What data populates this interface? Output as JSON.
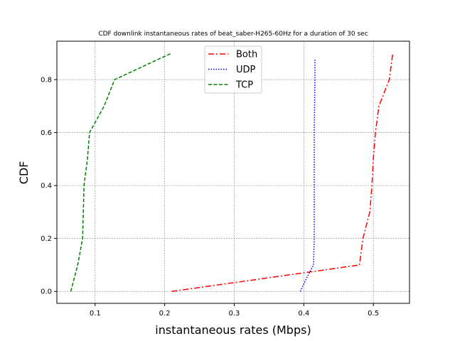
{
  "chart_data": {
    "type": "line",
    "title": "CDF downlink instantaneous rates of beat_saber-H265-60Hz for a duration of 30 sec",
    "xlabel": "instantaneous rates (Mbps)",
    "ylabel": "CDF",
    "xlim": [
      0.045,
      0.552
    ],
    "ylim": [
      -0.045,
      0.945
    ],
    "xticks": [
      0.1,
      0.2,
      0.3,
      0.4,
      0.5
    ],
    "xtick_labels": [
      "0.1",
      "0.2",
      "0.3",
      "0.4",
      "0.5"
    ],
    "yticks": [
      0.0,
      0.2,
      0.4,
      0.6,
      0.8
    ],
    "ytick_labels": [
      "0.0",
      "0.2",
      "0.4",
      "0.6",
      "0.8"
    ],
    "grid": true,
    "legend_position": "top-center",
    "series": [
      {
        "name": "Both",
        "color": "#ff0000",
        "dash": "dashdot",
        "points": [
          [
            0.21,
            0.0
          ],
          [
            0.48,
            0.1
          ],
          [
            0.485,
            0.2
          ],
          [
            0.495,
            0.3
          ],
          [
            0.498,
            0.4
          ],
          [
            0.5,
            0.5
          ],
          [
            0.503,
            0.6
          ],
          [
            0.508,
            0.7
          ],
          [
            0.523,
            0.8
          ],
          [
            0.528,
            0.9
          ]
        ]
      },
      {
        "name": "UDP",
        "color": "#0000ff",
        "dash": "dotted",
        "points": [
          [
            0.395,
            0.0
          ],
          [
            0.404,
            0.05
          ],
          [
            0.414,
            0.1
          ],
          [
            0.415,
            0.2
          ],
          [
            0.415,
            0.4
          ],
          [
            0.415,
            0.6
          ],
          [
            0.416,
            0.8
          ],
          [
            0.416,
            0.88
          ]
        ]
      },
      {
        "name": "TCP",
        "color": "#008000",
        "dash": "dashed",
        "points": [
          [
            0.065,
            0.0
          ],
          [
            0.075,
            0.1
          ],
          [
            0.082,
            0.2
          ],
          [
            0.083,
            0.3
          ],
          [
            0.084,
            0.4
          ],
          [
            0.089,
            0.5
          ],
          [
            0.092,
            0.6
          ],
          [
            0.113,
            0.7
          ],
          [
            0.128,
            0.8
          ],
          [
            0.21,
            0.9
          ]
        ]
      }
    ]
  }
}
